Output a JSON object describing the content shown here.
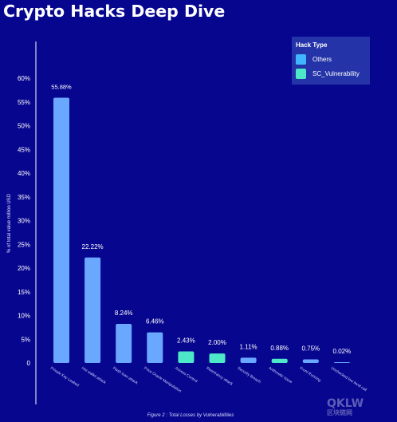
{
  "page": {
    "title": "Crypto Hacks Deep Dive"
  },
  "chart_data": {
    "type": "bar",
    "ylabel": "% of total value million USD",
    "xlabel": "",
    "ylim": [
      0,
      60
    ],
    "yticks": [
      "0",
      "5%",
      "10%",
      "15%",
      "20%",
      "25%",
      "30%",
      "35%",
      "40%",
      "45%",
      "50%",
      "55%",
      "60%"
    ],
    "grid": false,
    "legend": {
      "title": "Hack Type",
      "placement": "top-right",
      "entries": [
        {
          "name": "Others",
          "color": "#3fb6ff"
        },
        {
          "name": "SC_Vulnerability",
          "color": "#4de8c8"
        }
      ]
    },
    "categories": [
      "Private Key Leaked",
      "Hot wallet attack",
      "Flash loan attack",
      "Price Oracle Manipulation",
      "Access Control",
      "Reentrancy attack",
      "Security Breach",
      "Arithmetic Issue",
      "Front Running",
      "Unchecked low level call"
    ],
    "values": [
      55.88,
      22.22,
      8.24,
      6.46,
      2.43,
      2.0,
      1.11,
      0.88,
      0.75,
      0.02
    ],
    "value_labels": [
      "55.88%",
      "22.22%",
      "8.24%",
      "6.46%",
      "2.43%",
      "2.00%",
      "1.11%",
      "0.88%",
      "0.75%",
      "0.02%"
    ],
    "hack_types": [
      "Others",
      "Others",
      "Others",
      "Others",
      "SC_Vulnerability",
      "SC_Vulnerability",
      "Others",
      "SC_Vulnerability",
      "Others",
      "Others"
    ],
    "bar_colors": {
      "Others": "#6aa7ff",
      "SC_Vulnerability": "#4de8c8"
    },
    "caption": "Figure 2 : Total Losses by Vulnerabilitiies"
  },
  "watermark": {
    "main": "QKLW",
    "sub": "区块链网"
  }
}
